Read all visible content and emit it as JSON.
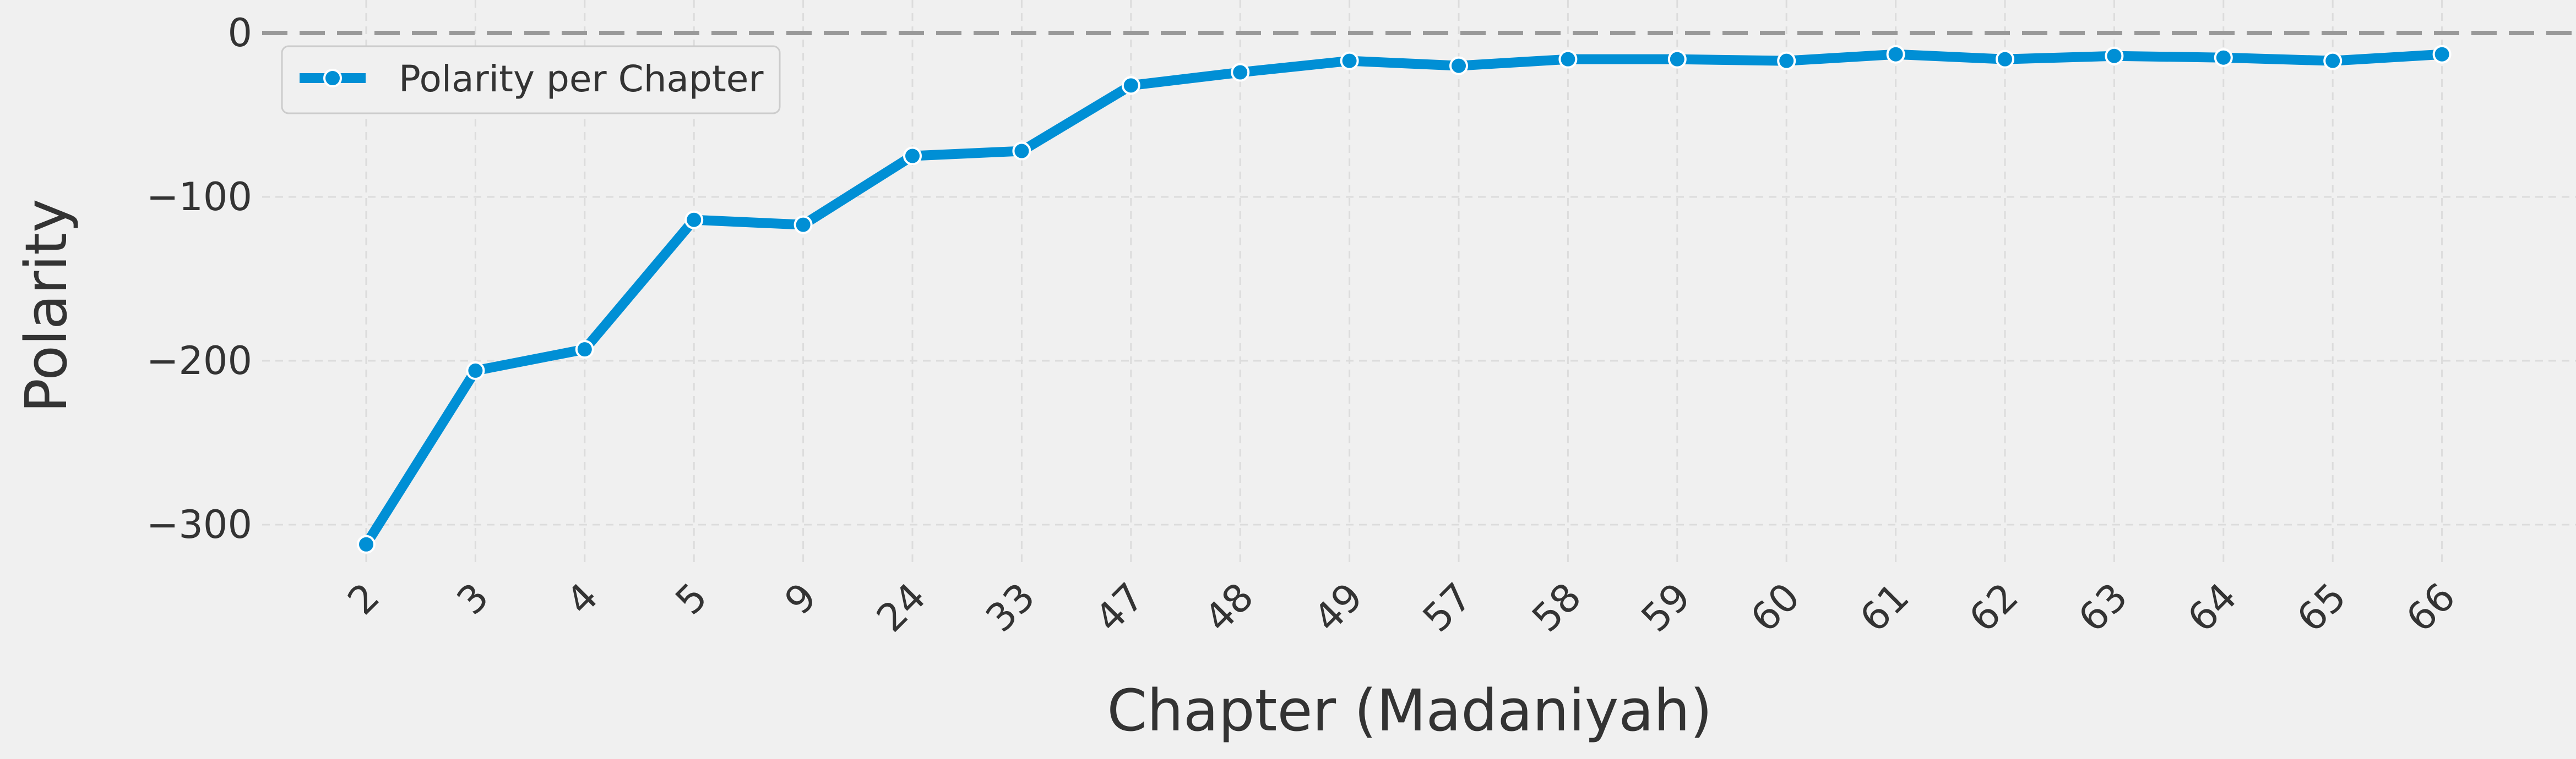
{
  "chart_data": {
    "type": "line",
    "categories": [
      "2",
      "3",
      "4",
      "5",
      "9",
      "24",
      "33",
      "47",
      "48",
      "49",
      "57",
      "58",
      "59",
      "60",
      "61",
      "62",
      "63",
      "64",
      "65",
      "66"
    ],
    "series": [
      {
        "name": "Polarity per Chapter",
        "values": [
          -312,
          -206,
          -193,
          -114,
          -117,
          -75,
          -72,
          -32,
          -24,
          -17,
          -20,
          -16,
          -16,
          -17,
          -13,
          -16,
          -14,
          -15,
          -17,
          -13
        ],
        "color": "#008fd5"
      }
    ],
    "xlabel": "Chapter (Madaniyah)",
    "ylabel": "Polarity",
    "ylim": [
      -330,
      0
    ],
    "yticks": [
      0,
      -100,
      -200,
      -300
    ],
    "yticks_labels": [
      "0",
      "−100",
      "−200",
      "−300"
    ],
    "reference_line": {
      "y": 0,
      "style": "dashed",
      "color": "#999999"
    },
    "grid": true,
    "legend_position": "top-left",
    "background": "#f0f0f0",
    "grid_color": "#dcdcdc"
  }
}
